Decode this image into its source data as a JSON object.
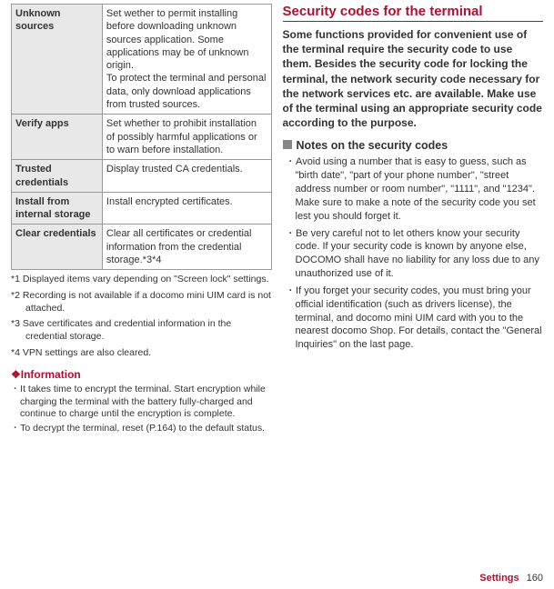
{
  "table": {
    "rows": [
      {
        "label": "Unknown sources",
        "desc": "Set wether to permit installing before downloading unknown sources application. Some applications may be of unknown origin.\nTo protect the terminal and personal data, only download applications from trusted sources."
      },
      {
        "label": "Verify apps",
        "desc": "Set whether to prohibit installation of possibly harmful applications or to warn before installation."
      },
      {
        "label": "Trusted credentials",
        "desc": "Display trusted CA credentials."
      },
      {
        "label": "Install from internal storage",
        "desc": "Install encrypted certificates."
      },
      {
        "label": "Clear credentials",
        "desc": "Clear all certificates or credential information from the credential storage.*3*4"
      }
    ]
  },
  "footnotes": [
    "*1  Displayed items vary depending on \"Screen lock\" settings.",
    "*2  Recording is not available if a docomo mini UIM card is not attached.",
    "*3  Save certificates and credential information in the credential storage.",
    "*4  VPN settings are also cleared."
  ],
  "info": {
    "header": "❖Information",
    "items": [
      "･ It takes time to encrypt the terminal. Start encryption while charging the terminal with the battery fully-charged and continue to charge until the encryption is complete.",
      "･ To decrypt the terminal, reset (P.164) to the default status."
    ]
  },
  "right": {
    "title": "Security codes for the terminal",
    "body": "Some functions provided for convenient use of the terminal require the security code to use them. Besides the security code for locking the terminal, the network security code necessary for the network services etc. are available. Make use of the terminal using an appropriate security code according to the purpose.",
    "notesHeader": "Notes on the security codes",
    "notes": [
      "･ Avoid using a number that is easy to guess, such as \"birth date\", \"part of your phone number\", \"street address number or room number\", \"1111\", and \"1234\". Make sure to make a note of the security code you set lest you should forget it.",
      "･ Be very careful not to let others know your security code. If your security code is known by anyone else, DOCOMO shall have no liability for any loss due to any unauthorized use of it.",
      "･ If you forget your security codes, you must bring your official identification (such as drivers license), the terminal, and docomo mini UIM card with you to the nearest docomo Shop. For details, contact the \"General Inquiries\" on the last page."
    ]
  },
  "footer": {
    "label": "Settings",
    "page": "160"
  }
}
